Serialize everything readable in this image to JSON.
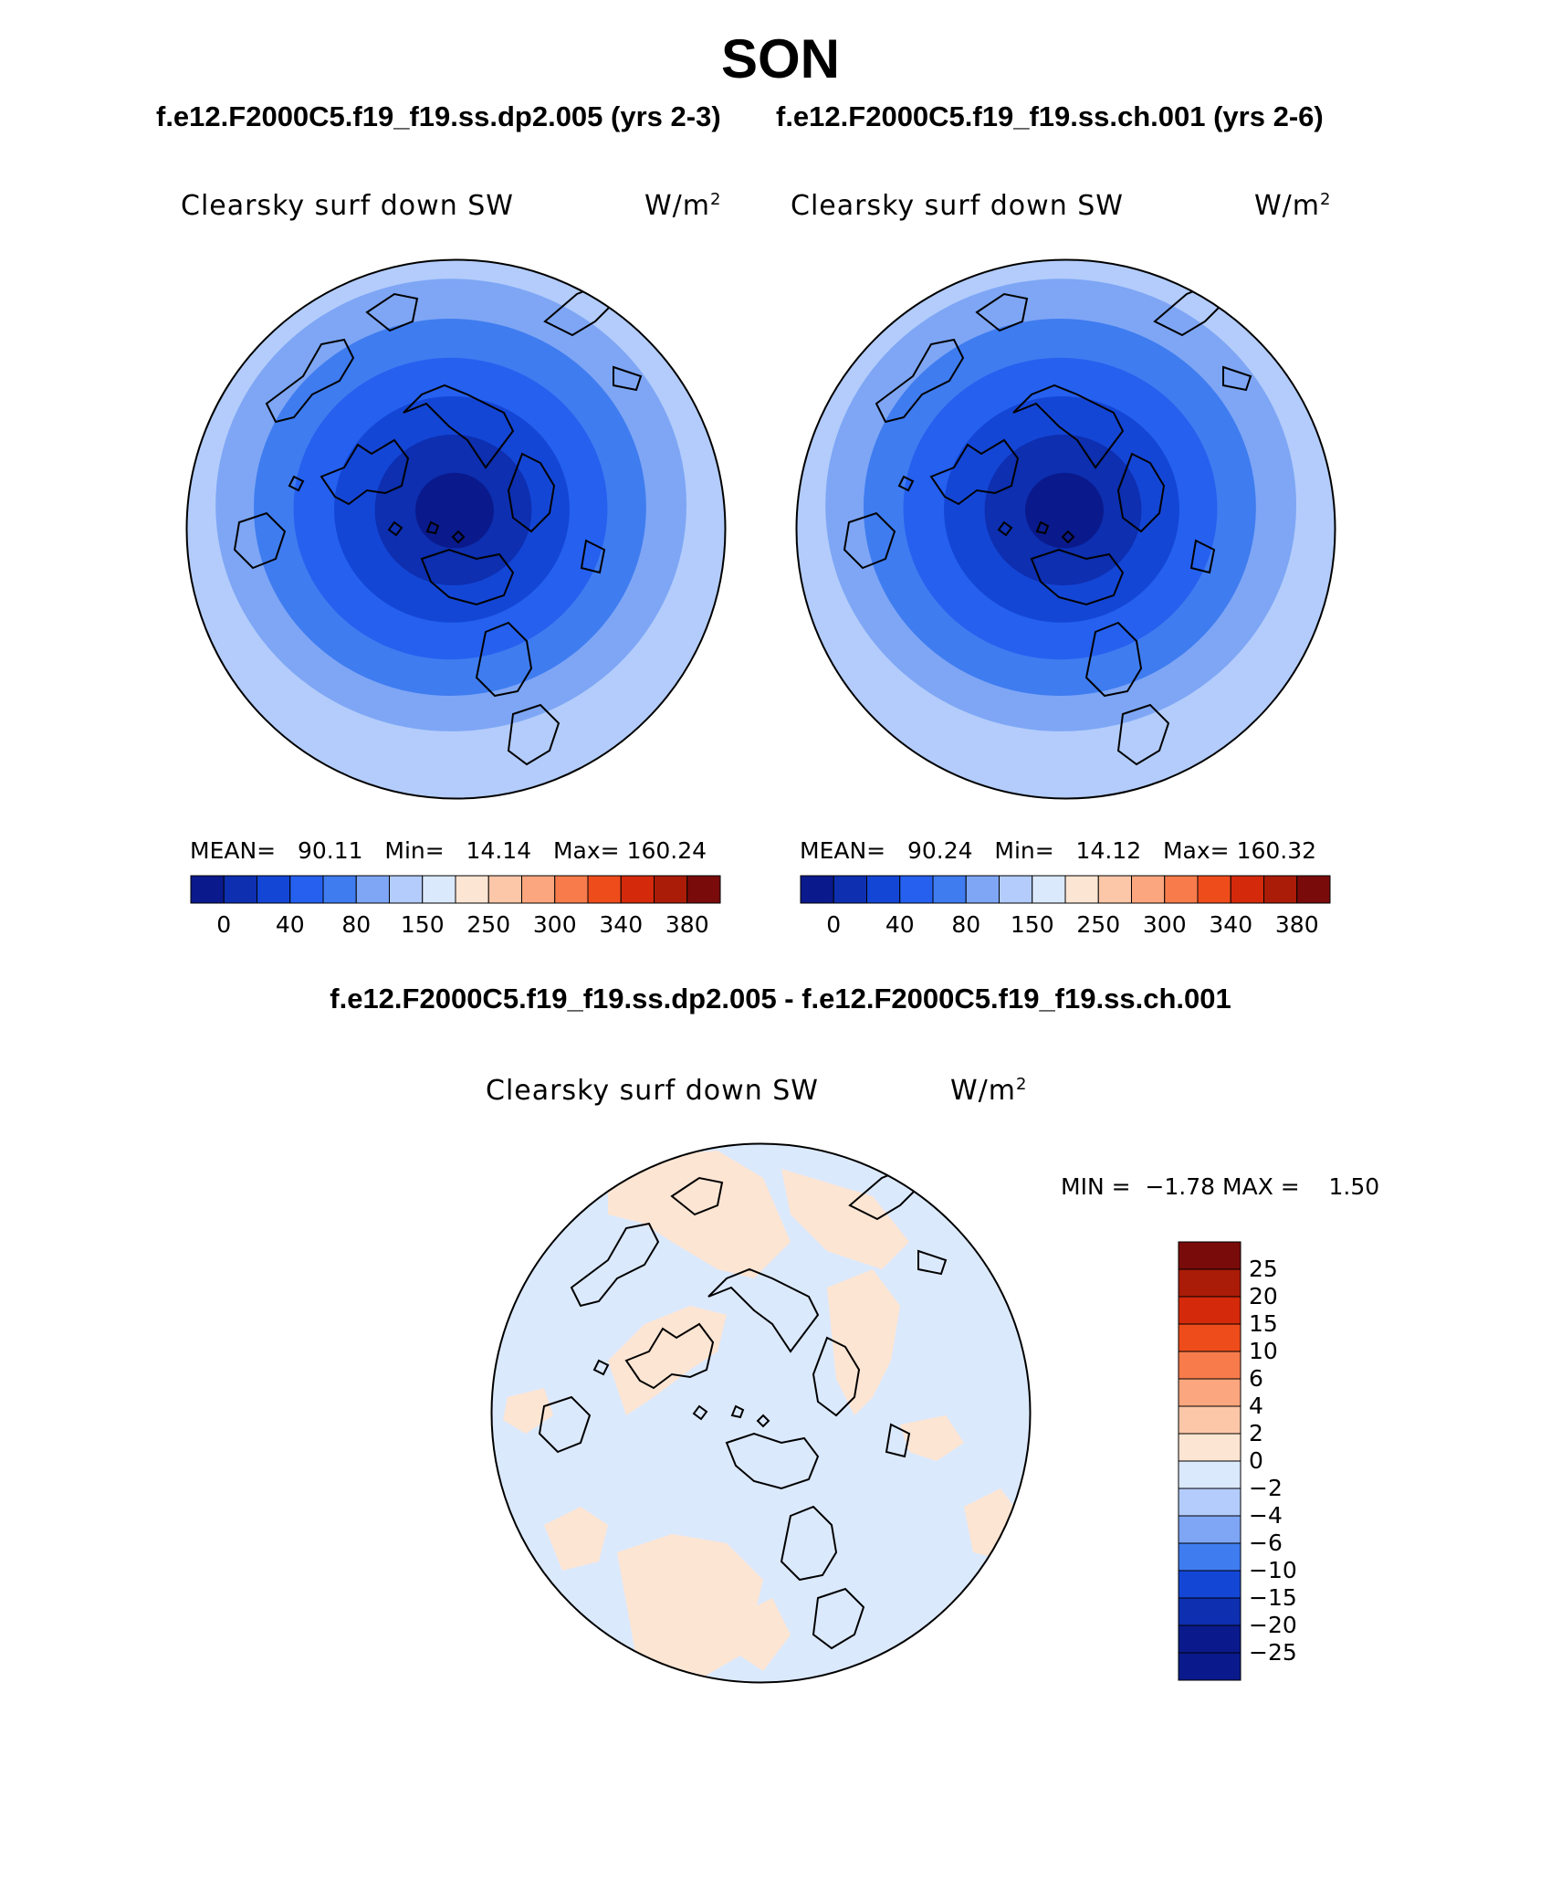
{
  "title": "SON",
  "case1": "f.e12.F2000C5.f19_f19.ss.dp2.005 (yrs 2-3)",
  "case2": "f.e12.F2000C5.f19_f19.ss.ch.001 (yrs 2-6)",
  "diff_title": "f.e12.F2000C5.f19_f19.ss.dp2.005 - f.e12.F2000C5.f19_f19.ss.ch.001",
  "colors": {
    "abs_palette": [
      "#0a1a8c",
      "#0d2fb0",
      "#1446d6",
      "#2560ef",
      "#3f7cf0",
      "#7ea6f5",
      "#b3ccfb",
      "#dbe9fd",
      "#fde5d3",
      "#fcc7a8",
      "#fba67e",
      "#f77b4b",
      "#ef4c1c",
      "#d42a0b",
      "#aa1c07",
      "#7a0b0b"
    ],
    "diff_palette": [
      "#7a0b0b",
      "#aa1c07",
      "#d42a0b",
      "#ef4c1c",
      "#f77b4b",
      "#fba67e",
      "#fcc7a8",
      "#fde5d3",
      "#dbe9fd",
      "#b3ccfb",
      "#7ea6f5",
      "#3f7cf0",
      "#1446d6",
      "#0d2fb0",
      "#0a1a8c"
    ]
  },
  "chart_data": [
    {
      "type": "heatmap",
      "name": "case1",
      "variable": "Clearsky surf down SW",
      "units": "W/m²",
      "units_base": "W/m",
      "units_sup": "2",
      "projection": "north polar stereographic",
      "stats": {
        "mean_label": "MEAN=",
        "mean": "90.11",
        "min_label": "Min=",
        "min": "14.14",
        "max_label": "Max=",
        "max": "160.24"
      },
      "contour_levels": [
        "0",
        "40",
        "80",
        "150",
        "250",
        "300",
        "340",
        "380"
      ],
      "ring_fill_indices": [
        6,
        5,
        4,
        3,
        2,
        1,
        0
      ]
    },
    {
      "type": "heatmap",
      "name": "case2",
      "variable": "Clearsky surf down SW",
      "units": "W/m²",
      "units_base": "W/m",
      "units_sup": "2",
      "projection": "north polar stereographic",
      "stats": {
        "mean_label": "MEAN=",
        "mean": "90.24",
        "min_label": "Min=",
        "min": "14.12",
        "max_label": "Max=",
        "max": "160.32"
      },
      "contour_levels": [
        "0",
        "40",
        "80",
        "150",
        "250",
        "300",
        "340",
        "380"
      ],
      "ring_fill_indices": [
        6,
        5,
        4,
        3,
        2,
        1,
        0
      ]
    },
    {
      "type": "heatmap",
      "name": "difference",
      "variable": "Clearsky surf down SW",
      "units": "W/m²",
      "units_base": "W/m",
      "units_sup": "2",
      "projection": "north polar stereographic",
      "stats": {
        "min_label": "MIN =",
        "min": "−1.78",
        "max_label": "MAX =",
        "max": "1.50"
      },
      "contour_levels": [
        "25",
        "20",
        "15",
        "10",
        "6",
        "4",
        "2",
        "0",
        "−2",
        "−4",
        "−6",
        "−10",
        "−15",
        "−20",
        "−25"
      ]
    }
  ]
}
